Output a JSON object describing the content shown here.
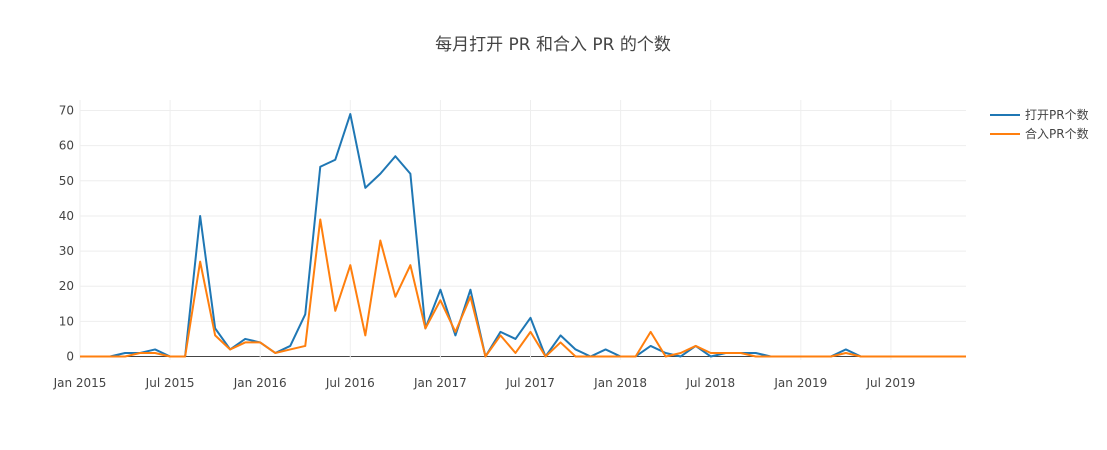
{
  "chart_data": {
    "type": "line",
    "title": "每月打开 PR 和合入 PR 的个数",
    "xlabel": "",
    "ylabel": "",
    "x_ticks": [
      "Jan 2015",
      "Jul 2015",
      "Jan 2016",
      "Jul 2016",
      "Jan 2017",
      "Jul 2017",
      "Jan 2018",
      "Jul 2018",
      "Jan 2019",
      "Jul 2019"
    ],
    "y_ticks": [
      0,
      10,
      20,
      30,
      40,
      50,
      60,
      70
    ],
    "ylim": [
      -1,
      73
    ],
    "xlim": [
      "2015-01",
      "2019-12"
    ],
    "grid": true,
    "legend_position": "top-right",
    "months": [
      "2015-01",
      "2015-02",
      "2015-03",
      "2015-04",
      "2015-05",
      "2015-06",
      "2015-07",
      "2015-08",
      "2015-09",
      "2015-10",
      "2015-11",
      "2015-12",
      "2016-01",
      "2016-02",
      "2016-03",
      "2016-04",
      "2016-05",
      "2016-06",
      "2016-07",
      "2016-08",
      "2016-09",
      "2016-10",
      "2016-11",
      "2016-12",
      "2017-01",
      "2017-02",
      "2017-03",
      "2017-04",
      "2017-05",
      "2017-06",
      "2017-07",
      "2017-08",
      "2017-09",
      "2017-10",
      "2017-11",
      "2017-12",
      "2018-01",
      "2018-02",
      "2018-03",
      "2018-04",
      "2018-05",
      "2018-06",
      "2018-07",
      "2018-08",
      "2018-09",
      "2018-10",
      "2018-11",
      "2018-12",
      "2019-01",
      "2019-02",
      "2019-03",
      "2019-04",
      "2019-05",
      "2019-06",
      "2019-07",
      "2019-08",
      "2019-09",
      "2019-10",
      "2019-11",
      "2019-12"
    ],
    "series": [
      {
        "name": "打开PR个数",
        "color": "#1f77b4",
        "values": [
          0,
          0,
          0,
          1,
          1,
          2,
          0,
          0,
          40,
          8,
          2,
          5,
          4,
          1,
          3,
          12,
          54,
          56,
          69,
          48,
          52,
          57,
          52,
          8,
          19,
          6,
          19,
          0,
          7,
          5,
          11,
          0,
          6,
          2,
          0,
          2,
          0,
          0,
          3,
          1,
          0,
          3,
          0,
          1,
          1,
          1,
          0,
          0,
          0,
          0,
          0,
          2,
          0,
          0,
          0,
          0,
          0,
          0,
          0,
          0
        ]
      },
      {
        "name": "合入PR个数",
        "color": "#ff7f0e",
        "values": [
          0,
          0,
          0,
          0,
          1,
          1,
          0,
          0,
          27,
          6,
          2,
          4,
          4,
          1,
          2,
          3,
          39,
          13,
          26,
          6,
          33,
          17,
          26,
          8,
          16,
          7,
          17,
          0,
          6,
          1,
          7,
          0,
          4,
          0,
          0,
          0,
          0,
          0,
          7,
          0,
          1,
          3,
          1,
          1,
          1,
          0,
          0,
          0,
          0,
          0,
          0,
          1,
          0,
          0,
          0,
          0,
          0,
          0,
          0,
          0
        ]
      }
    ]
  }
}
